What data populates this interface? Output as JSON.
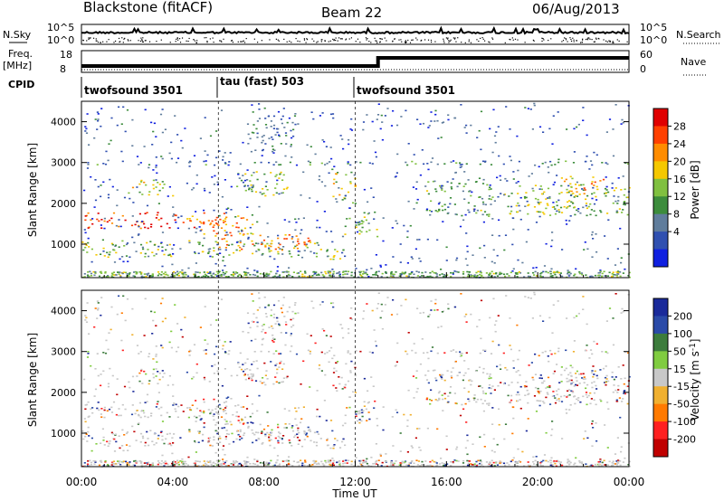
{
  "header": {
    "title": "Blackstone (fitACF)",
    "beam": "Beam 22",
    "date": "06/Aug/2013"
  },
  "panels": {
    "nsky": {
      "label": "N.Sky",
      "ytick_top": "10^5",
      "ytick_bottom": "10^0",
      "right_label": "N.Search"
    },
    "freq": {
      "label_line1": "Freq.",
      "label_line2": "[MHz]",
      "ytick_top": "18",
      "ytick_bottom": "8",
      "right_tick_top": "60",
      "right_tick_bottom": "0",
      "right_label": "Nave"
    },
    "cpid": {
      "label": "CPID",
      "segments": [
        "twofsound 3501",
        "tau (fast) 503",
        "twofsound 3501"
      ]
    }
  },
  "power_colorbar": {
    "label": "Power [dB]",
    "ticks": [
      "28",
      "24",
      "20",
      "16",
      "12",
      "8",
      "4"
    ],
    "colors": [
      "#e00000",
      "#ff4000",
      "#ff8c00",
      "#f5c800",
      "#80c040",
      "#3c8c3c",
      "#607d9c",
      "#3050b0",
      "#1020e0"
    ]
  },
  "velocity_colorbar": {
    "label": "Velocity [m s^-1]",
    "ticks": [
      "200",
      "100",
      "50",
      "15",
      "-15",
      "-50",
      "-100",
      "-200"
    ],
    "colors": [
      "#1a2a9a",
      "#2a4aa8",
      "#3c7c3c",
      "#80cc40",
      "#c8c8c8",
      "#f0b030",
      "#ff7a00",
      "#ff2020",
      "#c00000"
    ]
  },
  "chart_data": {
    "type": "heatmap",
    "title": "Blackstone (fitACF)  Beam 22  06/Aug/2013",
    "xlabel": "Time UT",
    "ylabel": "Slant Range [km]",
    "x_ticks": [
      "00:00",
      "04:00",
      "08:00",
      "12:00",
      "16:00",
      "20:00",
      "00:00"
    ],
    "y_ticks": [
      "1000",
      "2000",
      "3000",
      "4000"
    ],
    "xlim_hours": [
      0,
      24
    ],
    "ylim_km": [
      180,
      4500
    ],
    "cpid_change_hours": [
      6,
      12
    ],
    "frequency_step_hour": 13,
    "power_regions": [
      {
        "t": [
          0,
          4.5
        ],
        "r": [
          1400,
          1800
        ],
        "level": 0.92
      },
      {
        "t": [
          4.5,
          6.2
        ],
        "r": [
          1350,
          1700
        ],
        "level": 0.8
      },
      {
        "t": [
          2,
          4
        ],
        "r": [
          2200,
          2600
        ],
        "level": 0.55
      },
      {
        "t": [
          0,
          10.5
        ],
        "r": [
          700,
          1100
        ],
        "level": 0.45
      },
      {
        "t": [
          6,
          10
        ],
        "r": [
          850,
          1250
        ],
        "level": 0.78
      },
      {
        "t": [
          5,
          7.5
        ],
        "r": [
          1200,
          1800
        ],
        "level": 0.7
      },
      {
        "t": [
          6.5,
          9
        ],
        "r": [
          2200,
          2800
        ],
        "level": 0.5
      },
      {
        "t": [
          10,
          11.5
        ],
        "r": [
          600,
          900
        ],
        "level": 0.5
      },
      {
        "t": [
          11,
          12
        ],
        "r": [
          2000,
          2800
        ],
        "level": 0.55
      },
      {
        "t": [
          11.5,
          13
        ],
        "r": [
          1200,
          1800
        ],
        "level": 0.5
      },
      {
        "t": [
          15,
          18
        ],
        "r": [
          1700,
          2600
        ],
        "level": 0.4
      },
      {
        "t": [
          18.5,
          24
        ],
        "r": [
          1700,
          2500
        ],
        "level": 0.5
      },
      {
        "t": [
          21,
          23
        ],
        "r": [
          2200,
          2700
        ],
        "level": 0.7
      },
      {
        "t": [
          0,
          24
        ],
        "r": [
          2950,
          3050
        ],
        "level": 0.3
      },
      {
        "t": [
          7.5,
          9.5
        ],
        "r": [
          3300,
          4200
        ],
        "level": 0.25
      }
    ]
  }
}
